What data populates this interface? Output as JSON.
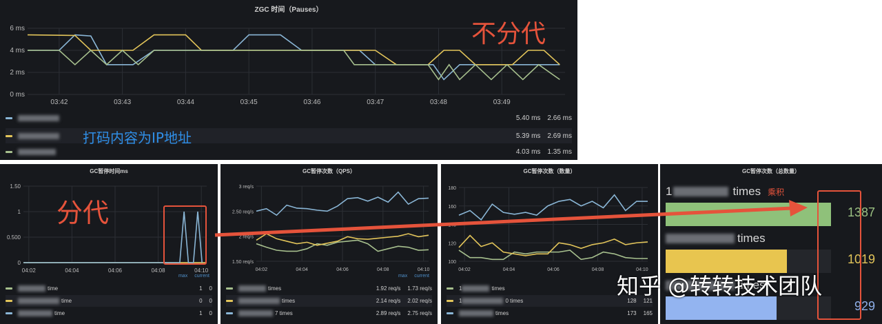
{
  "annotations": {
    "no_gen": "不分代",
    "gen": "分代",
    "ip_note": "打码内容为IP地址",
    "product": "乘积",
    "watermark": "知乎 @转转技术团队"
  },
  "colors": {
    "blue": "#8ab6d6",
    "yellow": "#e3c55a",
    "green": "#a7c08e",
    "annotation_red": "#e5533b",
    "annotation_blue": "#2f8fe8",
    "bar_green": "#8fc17a",
    "bar_yellow": "#e8c54f",
    "bar_blue": "#93b4f0"
  },
  "chart_data": [
    {
      "type": "line",
      "title": "ZGC 时间（Pauses）",
      "ylim": [
        0,
        6
      ],
      "yticks": [
        "0 ms",
        "2 ms",
        "4 ms",
        "6 ms"
      ],
      "ytick_values": [
        0,
        2,
        4,
        6
      ],
      "xlim": [
        "03:41:30",
        "03:50:00"
      ],
      "xticks": [
        "03:42",
        "03:43",
        "03:44",
        "03:45",
        "03:46",
        "03:47",
        "03:48",
        "03:49"
      ],
      "series": [
        {
          "color": "blue",
          "points": [
            [
              "03:41:30",
              4
            ],
            [
              "03:42:00",
              4
            ],
            [
              "03:42:15",
              5.4
            ],
            [
              "03:42:30",
              5.3
            ],
            [
              "03:42:45",
              2.7
            ],
            [
              "03:43:10",
              2.7
            ],
            [
              "03:43:30",
              4
            ],
            [
              "03:44:45",
              4
            ],
            [
              "03:45:00",
              5.4
            ],
            [
              "03:45:30",
              5.4
            ],
            [
              "03:45:50",
              4
            ],
            [
              "03:46:45",
              4
            ],
            [
              "03:47:00",
              2.7
            ],
            [
              "03:47:55",
              2.7
            ],
            [
              "03:48:05",
              1.35
            ],
            [
              "03:48:20",
              2.7
            ],
            [
              "03:49:55",
              2.7
            ]
          ],
          "max": "5.40 ms",
          "current": "2.66 ms"
        },
        {
          "color": "yellow",
          "points": [
            [
              "03:41:30",
              5.4
            ],
            [
              "03:42:15",
              5.35
            ],
            [
              "03:42:30",
              4
            ],
            [
              "03:43:10",
              4
            ],
            [
              "03:43:30",
              5.4
            ],
            [
              "03:44:00",
              5.4
            ],
            [
              "03:44:15",
              4
            ],
            [
              "03:47:00",
              4
            ],
            [
              "03:47:20",
              2.7
            ],
            [
              "03:47:50",
              2.7
            ],
            [
              "03:48:05",
              4
            ],
            [
              "03:48:20",
              4
            ],
            [
              "03:48:35",
              2.7
            ],
            [
              "03:49:10",
              2.7
            ],
            [
              "03:49:25",
              4
            ],
            [
              "03:49:40",
              4
            ],
            [
              "03:49:55",
              2.7
            ]
          ],
          "max": "5.39 ms",
          "current": "2.69 ms"
        },
        {
          "color": "green",
          "points": [
            [
              "03:41:30",
              4
            ],
            [
              "03:42:00",
              4
            ],
            [
              "03:42:15",
              2.7
            ],
            [
              "03:42:30",
              4
            ],
            [
              "03:42:45",
              2.7
            ],
            [
              "03:43:00",
              4
            ],
            [
              "03:43:15",
              2.7
            ],
            [
              "03:43:30",
              4
            ],
            [
              "03:46:30",
              4
            ],
            [
              "03:46:40",
              2.7
            ],
            [
              "03:47:50",
              2.7
            ],
            [
              "03:48:00",
              1.35
            ],
            [
              "03:48:10",
              2.7
            ],
            [
              "03:48:20",
              1.35
            ],
            [
              "03:48:35",
              2.7
            ],
            [
              "03:48:50",
              1.35
            ],
            [
              "03:49:05",
              2.7
            ],
            [
              "03:49:20",
              1.35
            ],
            [
              "03:49:35",
              2.7
            ],
            [
              "03:49:55",
              1.35
            ]
          ],
          "max": "4.03 ms",
          "current": "1.35 ms"
        }
      ]
    },
    {
      "type": "line",
      "title": "GC暂停时间ms",
      "ylim": [
        0,
        1.5
      ],
      "yticks": [
        "0",
        "0.500",
        "1",
        "1.50"
      ],
      "ytick_values": [
        0,
        0.5,
        1,
        1.5
      ],
      "xlim": [
        "04:01:45",
        "04:10:15"
      ],
      "xticks": [
        "04:02",
        "04:04",
        "04:06",
        "04:08",
        "04:10"
      ],
      "legend_header": [
        "max",
        "current"
      ],
      "series": [
        {
          "color": "green",
          "suffix": "time",
          "x": [
            "04:01:45",
            "04:10:15"
          ],
          "y": [
            0,
            0
          ],
          "max": "1",
          "current": "0"
        },
        {
          "color": "yellow",
          "suffix": "time",
          "x": [
            "04:01:45",
            "04:10:15"
          ],
          "y": [
            0,
            0
          ],
          "max": "0",
          "current": "0"
        },
        {
          "color": "blue",
          "suffix": "time",
          "x": [
            "04:01:45",
            "04:09:00",
            "04:09:12",
            "04:09:24",
            "04:09:38",
            "04:09:50",
            "04:10:02"
          ],
          "y": [
            0,
            0,
            1,
            0,
            0,
            1,
            0
          ],
          "max": "1",
          "current": "0"
        }
      ]
    },
    {
      "type": "line",
      "title": "GC暂停次数（QPS）",
      "ylim": [
        1.5,
        3
      ],
      "yticks": [
        "1.50 req/s",
        "2 req/s",
        "2.50 req/s",
        "3 req/s"
      ],
      "ytick_values": [
        1.5,
        2,
        2.5,
        3
      ],
      "xlim": [
        "04:01:45",
        "04:10:15"
      ],
      "xticks": [
        "04:02",
        "04:04",
        "04:06",
        "04:08",
        "04:10"
      ],
      "legend_header": [
        "max",
        "current"
      ],
      "x": [
        "04:01:45",
        "04:02:15",
        "04:02:45",
        "04:03:15",
        "04:03:45",
        "04:04:15",
        "04:04:45",
        "04:05:15",
        "04:05:45",
        "04:06:15",
        "04:06:45",
        "04:07:15",
        "04:07:45",
        "04:08:15",
        "04:08:45",
        "04:09:15",
        "04:09:45",
        "04:10:15"
      ],
      "series": [
        {
          "color": "green",
          "suffix": "times",
          "y": [
            1.85,
            1.78,
            1.72,
            1.7,
            1.7,
            1.75,
            1.85,
            1.82,
            1.88,
            1.9,
            1.92,
            1.85,
            1.7,
            1.75,
            1.8,
            1.78,
            1.72,
            1.73
          ],
          "max": "1.92 req/s",
          "current": "1.73 req/s"
        },
        {
          "color": "yellow",
          "suffix": "times",
          "y": [
            1.92,
            2.05,
            1.95,
            1.9,
            1.85,
            1.88,
            1.82,
            1.86,
            1.9,
            1.99,
            1.95,
            1.94,
            1.96,
            1.98,
            2.0,
            2.05,
            1.99,
            2.02
          ],
          "max": "2.14 req/s",
          "current": "2.02 req/s"
        },
        {
          "color": "blue",
          "suffix": "7 times",
          "y": [
            2.5,
            2.55,
            2.42,
            2.62,
            2.56,
            2.55,
            2.52,
            2.5,
            2.6,
            2.75,
            2.77,
            2.7,
            2.78,
            2.68,
            2.88,
            2.64,
            2.75,
            2.76
          ],
          "max": "2.89 req/s",
          "current": "2.75 req/s"
        }
      ]
    },
    {
      "type": "line",
      "title": "GC暂停次数（数量）",
      "ylim": [
        100,
        180
      ],
      "yticks": [
        "100",
        "120",
        "140",
        "160",
        "180"
      ],
      "ytick_values": [
        100,
        120,
        140,
        160,
        180
      ],
      "xlim": [
        "04:01:45",
        "04:10:15"
      ],
      "xticks": [
        "04:02",
        "04:04",
        "04:06",
        "04:08",
        "04:10"
      ],
      "x": [
        "04:01:45",
        "04:02:15",
        "04:02:45",
        "04:03:15",
        "04:03:45",
        "04:04:15",
        "04:04:45",
        "04:05:15",
        "04:05:45",
        "04:06:15",
        "04:06:45",
        "04:07:15",
        "04:07:45",
        "04:08:15",
        "04:08:45",
        "04:09:15",
        "04:09:45",
        "04:10:15"
      ],
      "series": [
        {
          "color": "green",
          "prefix": "1",
          "suffix": "times",
          "y": [
            112,
            104,
            104,
            102,
            102,
            110,
            108,
            110,
            110,
            110,
            112,
            102,
            104,
            110,
            108,
            104,
            103,
            103
          ],
          "max": "",
          "current": ""
        },
        {
          "color": "yellow",
          "prefix": "1",
          "suffix": "0 times",
          "y": [
            115,
            128,
            116,
            120,
            110,
            108,
            106,
            108,
            108,
            120,
            118,
            114,
            118,
            120,
            124,
            118,
            120,
            121
          ],
          "max": "128",
          "current": "121"
        },
        {
          "color": "blue",
          "suffix": "times",
          "y": [
            150,
            155,
            145,
            162,
            153,
            151,
            153,
            150,
            160,
            165,
            167,
            160,
            165,
            158,
            172,
            155,
            165,
            165
          ],
          "max": "173",
          "current": "165"
        }
      ]
    },
    {
      "type": "bar",
      "title": "GC暂停次数（总数量）",
      "orientation": "horizontal",
      "bars": [
        {
          "prefix": "1",
          "suffix": "times",
          "value": 1387,
          "color": "bar_green"
        },
        {
          "suffix": "times",
          "value": 1019,
          "color": "bar_yellow"
        },
        {
          "suffix": "times",
          "value": 929,
          "color": "bar_blue"
        }
      ]
    }
  ]
}
